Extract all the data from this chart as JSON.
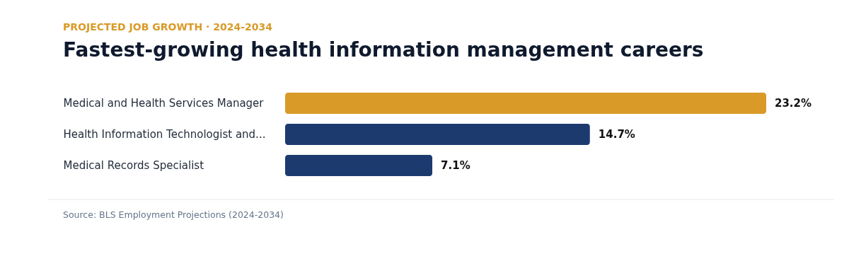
{
  "chart_data": {
    "type": "bar",
    "orientation": "horizontal",
    "subtitle": "PROJECTED JOB GROWTH · 2024-2034",
    "title": "Fastest-growing health information management careers",
    "categories": [
      "Medical and Health Services Manager",
      "Health Information Technologist and...",
      "Medical Records Specialist"
    ],
    "values": [
      23.2,
      14.7,
      7.1
    ],
    "colors": [
      "#d99a27",
      "#1c3a6e",
      "#1c3a6e"
    ],
    "value_labels": [
      "23.2%",
      "14.7%",
      "7.1%"
    ],
    "annotations": [
      "Source: BLS Employment Projections (2024-2034)"
    ],
    "grid": false
  }
}
